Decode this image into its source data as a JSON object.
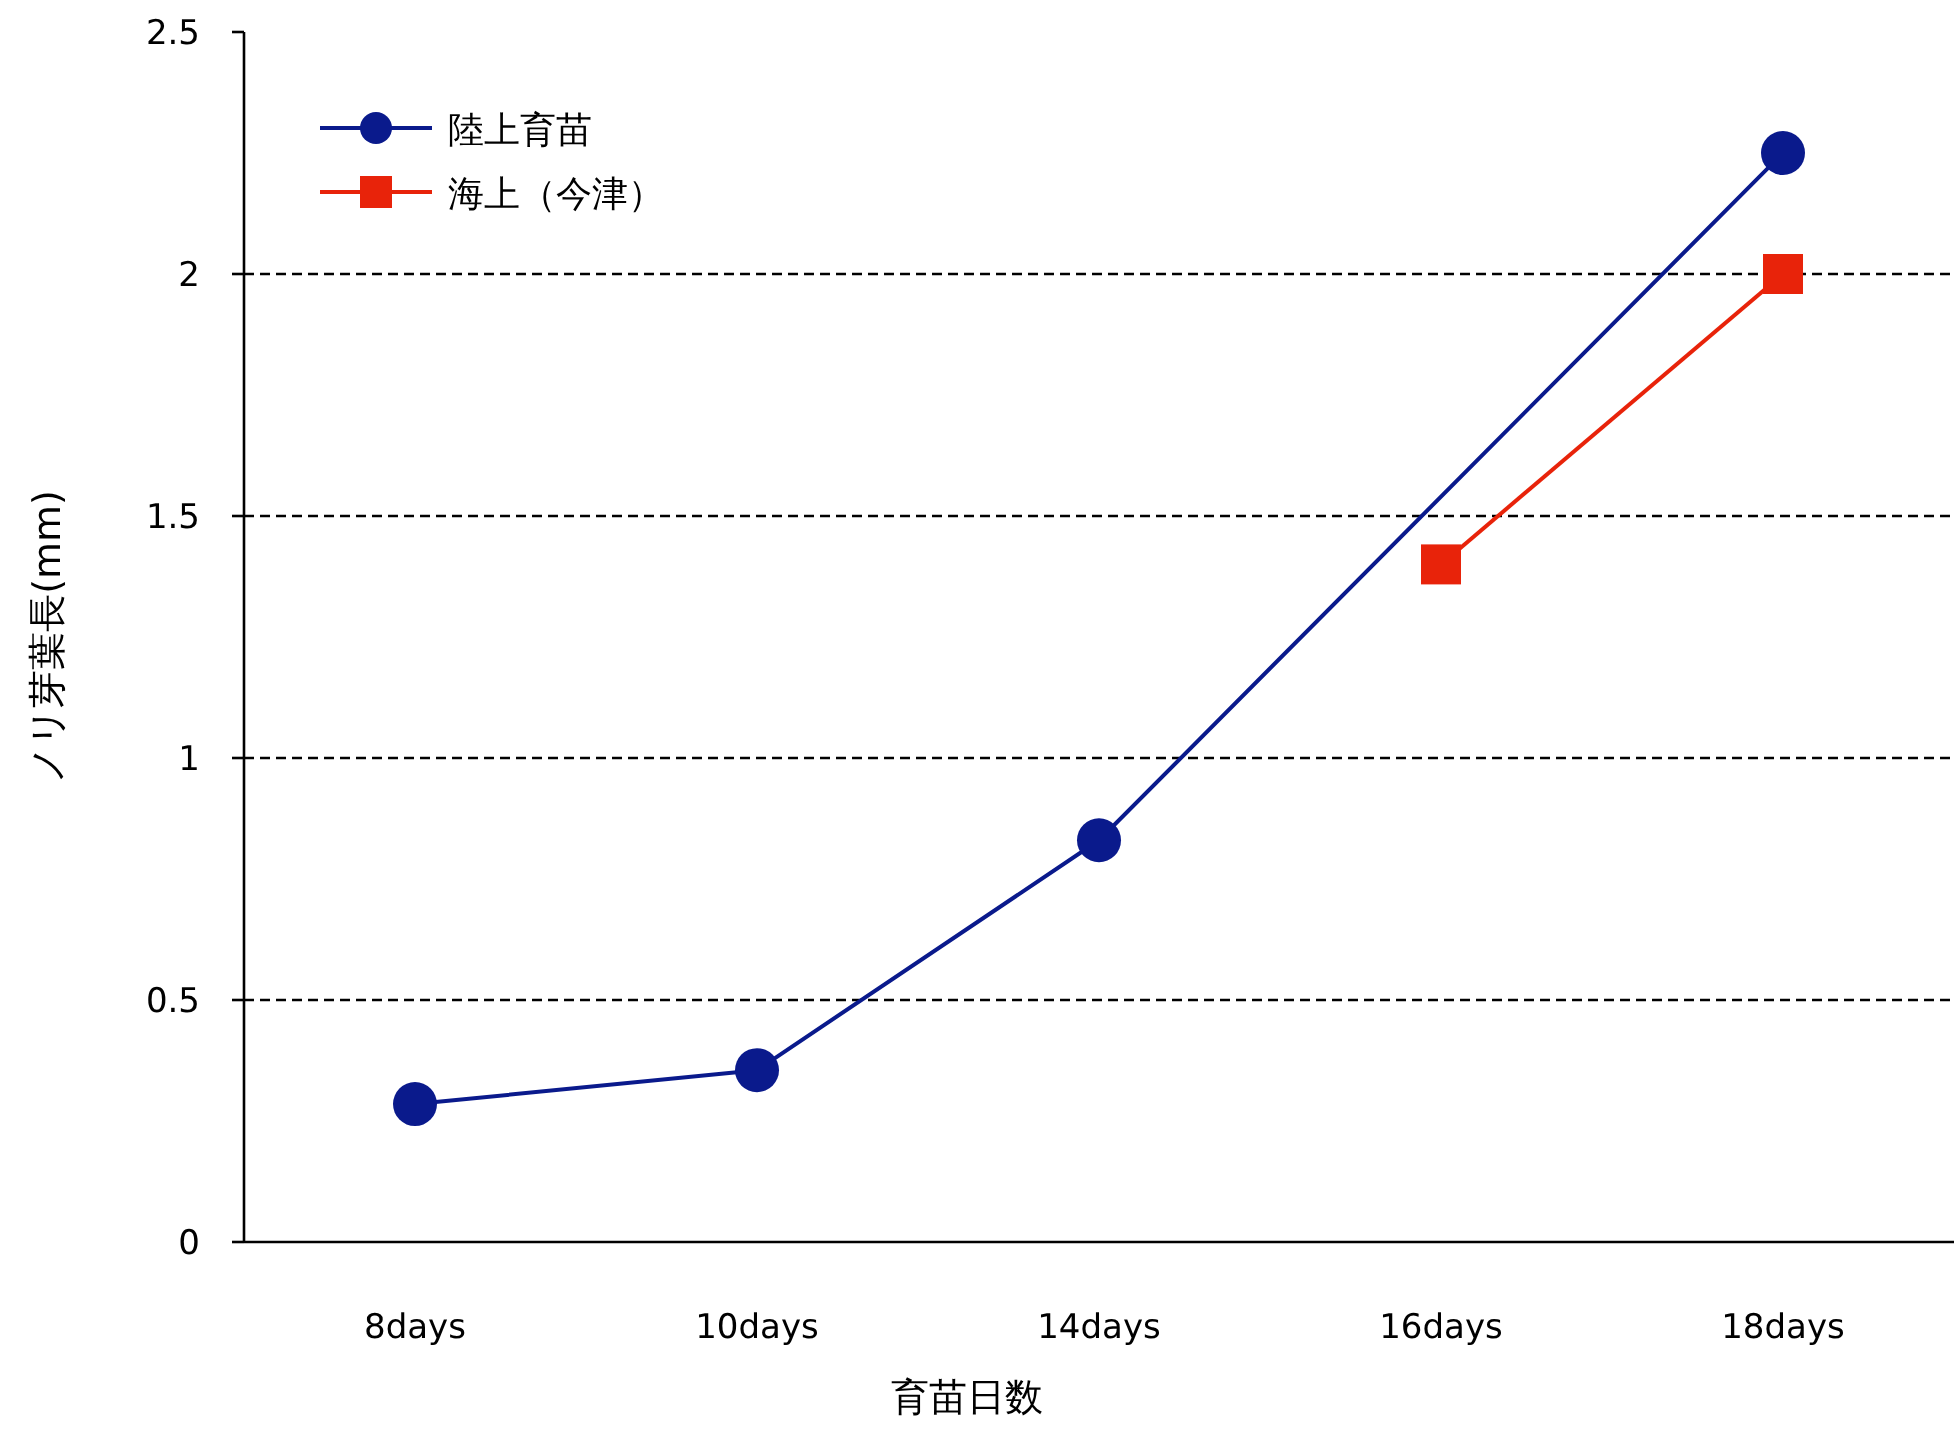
{
  "chart_data": {
    "type": "line",
    "xlabel": "育苗日数",
    "ylabel": "ノリ芽葉長(mm)",
    "categories": [
      "8days",
      "10days",
      "14days",
      "16days",
      "18days"
    ],
    "series": [
      {
        "name": "陸上育苗",
        "color": "#0a1a8c",
        "marker": "circle",
        "values": [
          0.285,
          0.355,
          0.83,
          null,
          2.25
        ]
      },
      {
        "name": "海上（今津）",
        "color": "#e8230a",
        "marker": "square",
        "values": [
          null,
          null,
          null,
          1.4,
          2.0
        ]
      }
    ],
    "ylim": [
      0,
      2.5
    ],
    "yticks": [
      0,
      0.5,
      1,
      1.5,
      2,
      2.5
    ],
    "grid": "y",
    "legend": "top left"
  }
}
